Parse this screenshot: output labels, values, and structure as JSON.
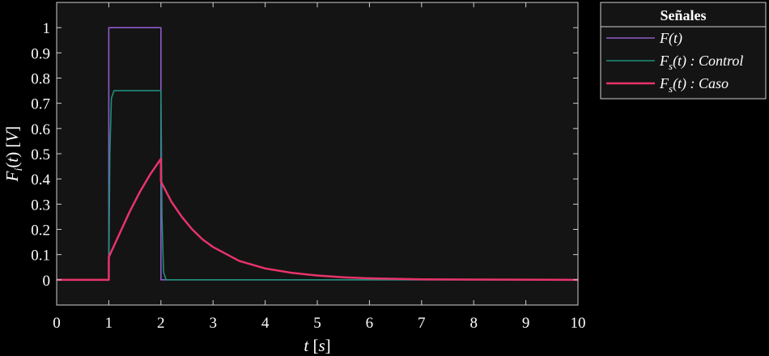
{
  "chart_data": {
    "type": "line",
    "xlabel": "t [s]",
    "ylabel": "F_i(t) [V]",
    "xlim": [
      0,
      10
    ],
    "ylim": [
      -0.1,
      1.1
    ],
    "x_ticks": [
      "0",
      "1",
      "2",
      "3",
      "4",
      "5",
      "6",
      "7",
      "8",
      "9",
      "10"
    ],
    "y_ticks": [
      "0",
      "0.1",
      "0.2",
      "0.3",
      "0.4",
      "0.5",
      "0.6",
      "0.7",
      "0.8",
      "0.9",
      "1"
    ],
    "grid": false,
    "background": "#141414",
    "legend": {
      "title": "Señales",
      "placement": "outside-top-right",
      "entries": [
        {
          "main": "F",
          "sub": "",
          "rest": "(t)",
          "color": "#8e5bc8"
        },
        {
          "main": "F",
          "sub": "s",
          "rest": "(t) : Control",
          "color": "#1e8f7a"
        },
        {
          "main": "F",
          "sub": "s",
          "rest": "(t) : Caso",
          "color": "#e8336b"
        }
      ]
    },
    "series": [
      {
        "name": "F(t)",
        "color": "#8e5bc8",
        "x": [
          0,
          1,
          1,
          2,
          2,
          10
        ],
        "y": [
          0,
          0,
          1,
          1,
          0,
          0
        ]
      },
      {
        "name": "Fs(t) : Control",
        "color": "#1e8f7a",
        "x": [
          0,
          1,
          1.02,
          1.05,
          1.1,
          1.2,
          2.0,
          2.02,
          2.05,
          2.1,
          10
        ],
        "y": [
          0,
          0,
          0.5,
          0.72,
          0.75,
          0.75,
          0.75,
          0.25,
          0.03,
          0,
          0
        ]
      },
      {
        "name": "Fs(t) : Caso",
        "color": "#e8336b",
        "x": [
          0,
          1,
          1,
          1.2,
          1.4,
          1.6,
          1.8,
          2.0,
          2.0,
          2.2,
          2.4,
          2.6,
          2.8,
          3.0,
          3.5,
          4.0,
          4.5,
          5.0,
          5.5,
          6.0,
          7.0,
          8.0,
          10
        ],
        "y": [
          0,
          0,
          0.09,
          0.18,
          0.27,
          0.35,
          0.42,
          0.48,
          0.39,
          0.31,
          0.25,
          0.2,
          0.16,
          0.13,
          0.075,
          0.045,
          0.028,
          0.017,
          0.01,
          0.006,
          0.002,
          0.001,
          0
        ]
      }
    ]
  }
}
